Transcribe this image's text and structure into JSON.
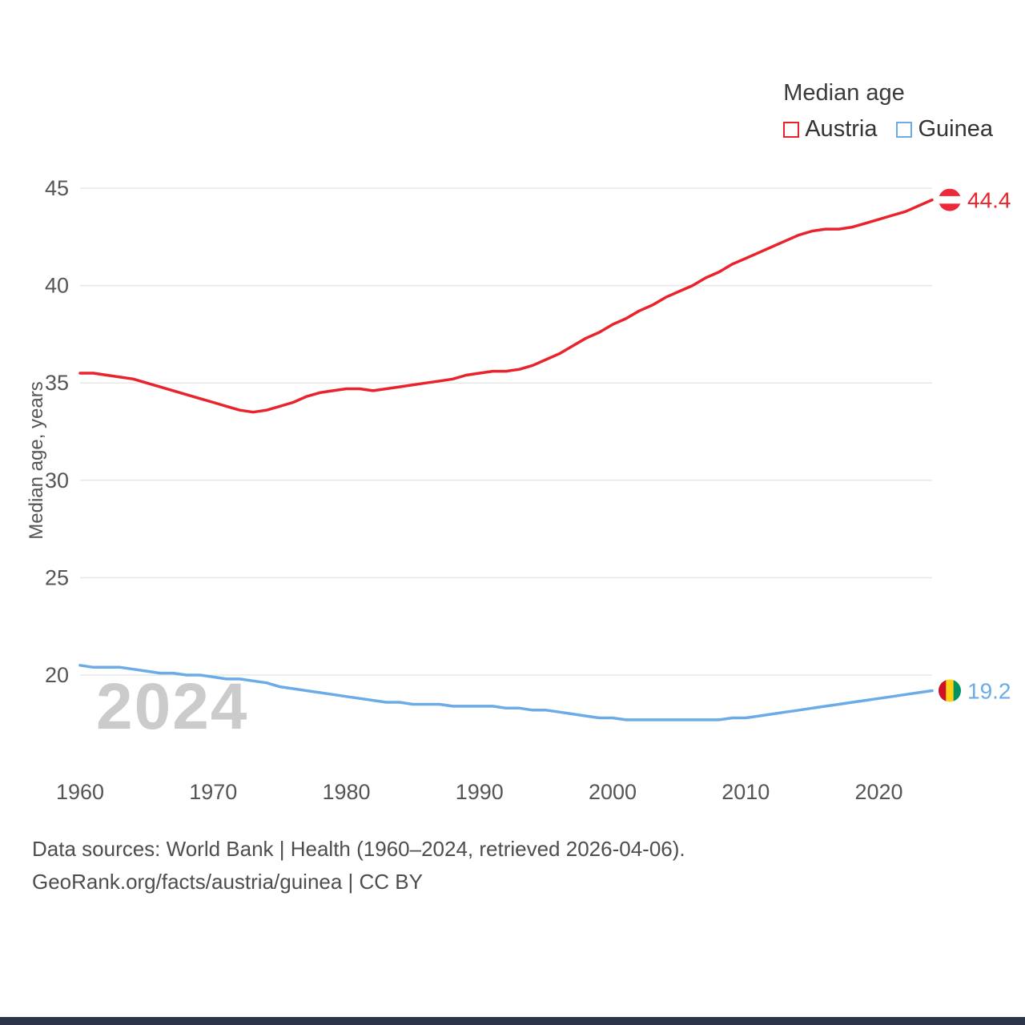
{
  "chart_data": {
    "type": "line",
    "title": "Median age",
    "ylabel": "Median age, years",
    "xlabel": "",
    "watermark": "2024",
    "grid": "horizontal",
    "legend_position": "top-right",
    "xlim": [
      1960,
      2024
    ],
    "ylim": [
      17,
      46
    ],
    "yticks": [
      20,
      25,
      30,
      35,
      40,
      45
    ],
    "xticks": [
      1960,
      1970,
      1980,
      1990,
      2000,
      2010,
      2020
    ],
    "x": [
      1960,
      1961,
      1962,
      1963,
      1964,
      1965,
      1966,
      1967,
      1968,
      1969,
      1970,
      1971,
      1972,
      1973,
      1974,
      1975,
      1976,
      1977,
      1978,
      1979,
      1980,
      1981,
      1982,
      1983,
      1984,
      1985,
      1986,
      1987,
      1988,
      1989,
      1990,
      1991,
      1992,
      1993,
      1994,
      1995,
      1996,
      1997,
      1998,
      1999,
      2000,
      2001,
      2002,
      2003,
      2004,
      2005,
      2006,
      2007,
      2008,
      2009,
      2010,
      2011,
      2012,
      2013,
      2014,
      2015,
      2016,
      2017,
      2018,
      2019,
      2020,
      2021,
      2022,
      2023,
      2024
    ],
    "series": [
      {
        "name": "Austria",
        "color": "#e8232b",
        "end_label": "44.4",
        "flag": [
          "#ed2939",
          "#ffffff",
          "#ed2939"
        ],
        "flag_orientation": "horizontal",
        "values": [
          35.5,
          35.5,
          35.4,
          35.3,
          35.2,
          35.0,
          34.8,
          34.6,
          34.4,
          34.2,
          34.0,
          33.8,
          33.6,
          33.5,
          33.6,
          33.8,
          34.0,
          34.3,
          34.5,
          34.6,
          34.7,
          34.7,
          34.6,
          34.7,
          34.8,
          34.9,
          35.0,
          35.1,
          35.2,
          35.4,
          35.5,
          35.6,
          35.6,
          35.7,
          35.9,
          36.2,
          36.5,
          36.9,
          37.3,
          37.6,
          38.0,
          38.3,
          38.7,
          39.0,
          39.4,
          39.7,
          40.0,
          40.4,
          40.7,
          41.1,
          41.4,
          41.7,
          42.0,
          42.3,
          42.6,
          42.8,
          42.9,
          42.9,
          43.0,
          43.2,
          43.4,
          43.6,
          43.8,
          44.1,
          44.4
        ]
      },
      {
        "name": "Guinea",
        "color": "#6aabe8",
        "end_label": "19.2",
        "flag": [
          "#ce1126",
          "#fcd116",
          "#009460"
        ],
        "flag_orientation": "vertical",
        "values": [
          20.5,
          20.4,
          20.4,
          20.4,
          20.3,
          20.2,
          20.1,
          20.1,
          20.0,
          20.0,
          19.9,
          19.8,
          19.8,
          19.7,
          19.6,
          19.4,
          19.3,
          19.2,
          19.1,
          19.0,
          18.9,
          18.8,
          18.7,
          18.6,
          18.6,
          18.5,
          18.5,
          18.5,
          18.4,
          18.4,
          18.4,
          18.4,
          18.3,
          18.3,
          18.2,
          18.2,
          18.1,
          18.0,
          17.9,
          17.8,
          17.8,
          17.7,
          17.7,
          17.7,
          17.7,
          17.7,
          17.7,
          17.7,
          17.7,
          17.8,
          17.8,
          17.9,
          18.0,
          18.1,
          18.2,
          18.3,
          18.4,
          18.5,
          18.6,
          18.7,
          18.8,
          18.9,
          19.0,
          19.1,
          19.2
        ]
      }
    ]
  },
  "footer": {
    "line1": "Data sources: World Bank | Health (1960–2024, retrieved 2026-04-06).",
    "line2": "GeoRank.org/facts/austria/guinea | CC BY"
  },
  "colors": {
    "grid": "#e7e7e7",
    "tick_text": "#555555",
    "watermark": "#cbcbcb",
    "bottom_bar": "#2c3547"
  }
}
